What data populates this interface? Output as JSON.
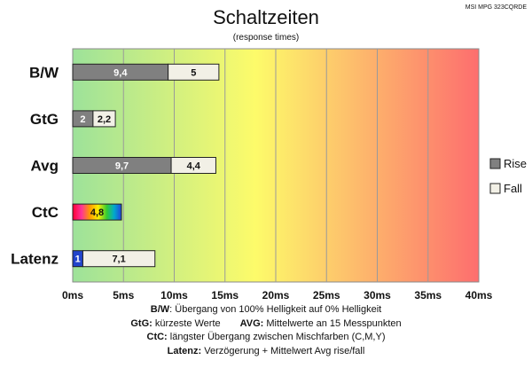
{
  "monitor_label": "MSI MPG 323CQRDE",
  "chart_data": {
    "type": "bar",
    "orientation": "horizontal",
    "stacked": true,
    "title": "Schaltzeiten",
    "subtitle": "(response times)",
    "categories": [
      "B/W",
      "GtG",
      "Avg",
      "CtC",
      "Latenz"
    ],
    "series": [
      {
        "name": "Rise",
        "values": [
          9.4,
          2,
          9.7,
          4.8,
          1
        ],
        "labels": [
          "9,4",
          "2",
          "9,7",
          "4,8",
          "1"
        ]
      },
      {
        "name": "Fall",
        "values": [
          5,
          2.2,
          4.4,
          null,
          7.1
        ],
        "labels": [
          "5",
          "2,2",
          "4,4",
          "",
          "7,1"
        ]
      }
    ],
    "xlim": [
      0,
      40
    ],
    "x_ticks": [
      "0ms",
      "5ms",
      "10ms",
      "15ms",
      "20ms",
      "25ms",
      "30ms",
      "35ms",
      "40ms"
    ],
    "x_tick_values": [
      0,
      5,
      10,
      15,
      20,
      25,
      30,
      35,
      40
    ],
    "grid": true,
    "legend_position": "right",
    "background_gradient": [
      "#9de29a",
      "#fdfb6a",
      "#fd6e6e"
    ],
    "colors": {
      "rise": "#808080",
      "fall": "#f2f0e6",
      "latency_rise": "#2244cc"
    }
  },
  "notes": {
    "bw_key": "B/W",
    "bw_text": ":  Übergang von 100% Helligkeit auf 0% Helligkeit",
    "gtg_key": "GtG:",
    "gtg_text": " kürzeste  Werte",
    "avg_key": "AVG:",
    "avg_text": " Mittelwerte  an 15 Messpunkten",
    "ctc_key": "CtC:",
    "ctc_text": " längster Übergang  zwischen Mischfarben  (C,M,Y)",
    "latenz_key": "Latenz:",
    "latenz_text": " Verzögerung  + Mittelwert Avg rise/fall"
  }
}
